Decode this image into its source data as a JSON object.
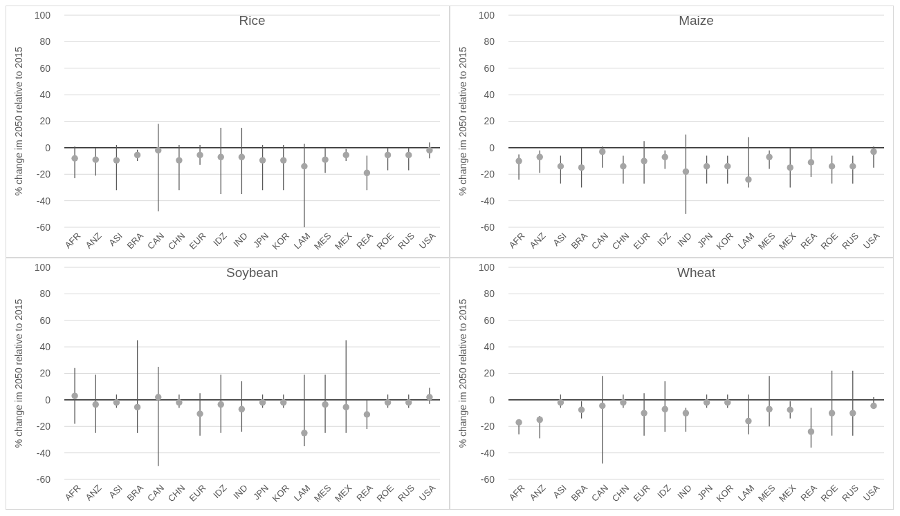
{
  "chart_data": [
    {
      "type": "scatter",
      "title": "Rice",
      "ylabel": "% change im 2050 relative to 2015",
      "categories": [
        "AFR",
        "ANZ",
        "ASI",
        "BRA",
        "CAN",
        "CHN",
        "EUR",
        "IDZ",
        "IND",
        "JPN",
        "KOR",
        "LAM",
        "MES",
        "MEX",
        "REA",
        "ROE",
        "RUS",
        "USA"
      ],
      "ylim": [
        -60,
        100
      ],
      "yticks": [
        -60,
        -40,
        -20,
        0,
        20,
        40,
        60,
        80,
        100
      ],
      "grid": "y",
      "marker": "circle",
      "series": [
        {
          "color": "#a5a5a5",
          "values": [
            -8,
            -9,
            -9.5,
            -5.5,
            -2,
            -9.5,
            -5.5,
            -7,
            -7,
            -9.5,
            -9.5,
            -14,
            -9,
            -5.5,
            -19,
            -5.5,
            -5.5,
            -2
          ],
          "errors": [
            [
              -23,
              1
            ],
            [
              -21,
              0
            ],
            [
              -32,
              2
            ],
            [
              -10,
              -1.5
            ],
            [
              -48,
              18
            ],
            [
              -32,
              2
            ],
            [
              -13,
              2
            ],
            [
              -35,
              15
            ],
            [
              -35,
              15
            ],
            [
              -32,
              2
            ],
            [
              -32,
              2
            ],
            [
              -60,
              3
            ],
            [
              -19,
              0
            ],
            [
              -10,
              -1
            ],
            [
              -32,
              -6
            ],
            [
              -17,
              0
            ],
            [
              -17,
              0
            ],
            [
              -8,
              4
            ]
          ]
        }
      ]
    },
    {
      "type": "scatter",
      "title": "Maize",
      "ylabel": "% change im 2050 relative to 2015",
      "categories": [
        "AFR",
        "ANZ",
        "ASI",
        "BRA",
        "CAN",
        "CHN",
        "EUR",
        "IDZ",
        "IND",
        "JPN",
        "KOR",
        "LAM",
        "MES",
        "MEX",
        "REA",
        "ROE",
        "RUS",
        "USA"
      ],
      "ylim": [
        -60,
        100
      ],
      "yticks": [
        -60,
        -40,
        -20,
        0,
        20,
        40,
        60,
        80,
        100
      ],
      "grid": "y",
      "marker": "circle",
      "series": [
        {
          "color": "#a5a5a5",
          "values": [
            -10,
            -7,
            -14,
            -15,
            -3,
            -14,
            -10,
            -7,
            -18,
            -14,
            -14,
            -24,
            -7,
            -15,
            -11,
            -14,
            -14,
            -3
          ],
          "errors": [
            [
              -24,
              -5
            ],
            [
              -19,
              -2
            ],
            [
              -27,
              -6
            ],
            [
              -30,
              0
            ],
            [
              -15,
              1
            ],
            [
              -27,
              -6
            ],
            [
              -27,
              5
            ],
            [
              -16,
              -2
            ],
            [
              -50,
              10
            ],
            [
              -27,
              -6
            ],
            [
              -27,
              -6
            ],
            [
              -30,
              8
            ],
            [
              -16,
              -2
            ],
            [
              -30,
              0
            ],
            [
              -22,
              0
            ],
            [
              -27,
              -6
            ],
            [
              -27,
              -6
            ],
            [
              -15,
              1
            ]
          ]
        }
      ]
    },
    {
      "type": "scatter",
      "title": "Soybean",
      "ylabel": "% change im 2050 relative to 2015",
      "categories": [
        "AFR",
        "ANZ",
        "ASI",
        "BRA",
        "CAN",
        "CHN",
        "EUR",
        "IDZ",
        "IND",
        "JPN",
        "KOR",
        "LAM",
        "MES",
        "MEX",
        "REA",
        "ROE",
        "RUS",
        "USA"
      ],
      "ylim": [
        -60,
        100
      ],
      "yticks": [
        -60,
        -40,
        -20,
        0,
        20,
        40,
        60,
        80,
        100
      ],
      "grid": "y",
      "marker": "circle",
      "series": [
        {
          "color": "#a5a5a5",
          "values": [
            3,
            -3.5,
            -2,
            -5.5,
            2,
            -2,
            -10.5,
            -3.5,
            -7,
            -2,
            -2,
            -25,
            -3.5,
            -5.5,
            -11,
            -2,
            -2,
            2
          ],
          "errors": [
            [
              -18,
              24
            ],
            [
              -25,
              19
            ],
            [
              -6,
              4
            ],
            [
              -25,
              45
            ],
            [
              -50,
              25
            ],
            [
              -6,
              4
            ],
            [
              -27,
              5
            ],
            [
              -25,
              19
            ],
            [
              -24,
              14
            ],
            [
              -6,
              4
            ],
            [
              -6,
              4
            ],
            [
              -35,
              19
            ],
            [
              -25,
              19
            ],
            [
              -25,
              45
            ],
            [
              -22,
              0
            ],
            [
              -6,
              4
            ],
            [
              -6,
              4
            ],
            [
              -3,
              9
            ]
          ]
        }
      ]
    },
    {
      "type": "scatter",
      "title": "Wheat",
      "ylabel": "% change im 2050 relative to 2015",
      "categories": [
        "AFR",
        "ANZ",
        "ASI",
        "BRA",
        "CAN",
        "CHN",
        "EUR",
        "IDZ",
        "IND",
        "JPN",
        "KOR",
        "LAM",
        "MES",
        "MEX",
        "REA",
        "ROE",
        "RUS",
        "USA"
      ],
      "ylim": [
        -60,
        100
      ],
      "yticks": [
        -60,
        -40,
        -20,
        0,
        20,
        40,
        60,
        80,
        100
      ],
      "grid": "y",
      "marker": "circle",
      "series": [
        {
          "color": "#a5a5a5",
          "values": [
            -17,
            -15,
            -2,
            -7.5,
            -4.5,
            -2,
            -10,
            -7,
            -10,
            -2,
            -2,
            -16,
            -7,
            -7.5,
            -24,
            -10,
            -10,
            -4.5
          ],
          "errors": [
            [
              -26,
              -17
            ],
            [
              -29,
              -12
            ],
            [
              -6,
              4
            ],
            [
              -14,
              -1
            ],
            [
              -48,
              18
            ],
            [
              -6,
              4
            ],
            [
              -27,
              5
            ],
            [
              -24,
              14
            ],
            [
              -24,
              -6
            ],
            [
              -6,
              4
            ],
            [
              -6,
              4
            ],
            [
              -26,
              4
            ],
            [
              -20,
              18
            ],
            [
              -14,
              -1
            ],
            [
              -36,
              -6
            ],
            [
              -27,
              22
            ],
            [
              -27,
              22
            ],
            [
              -5,
              2
            ]
          ]
        }
      ]
    }
  ]
}
